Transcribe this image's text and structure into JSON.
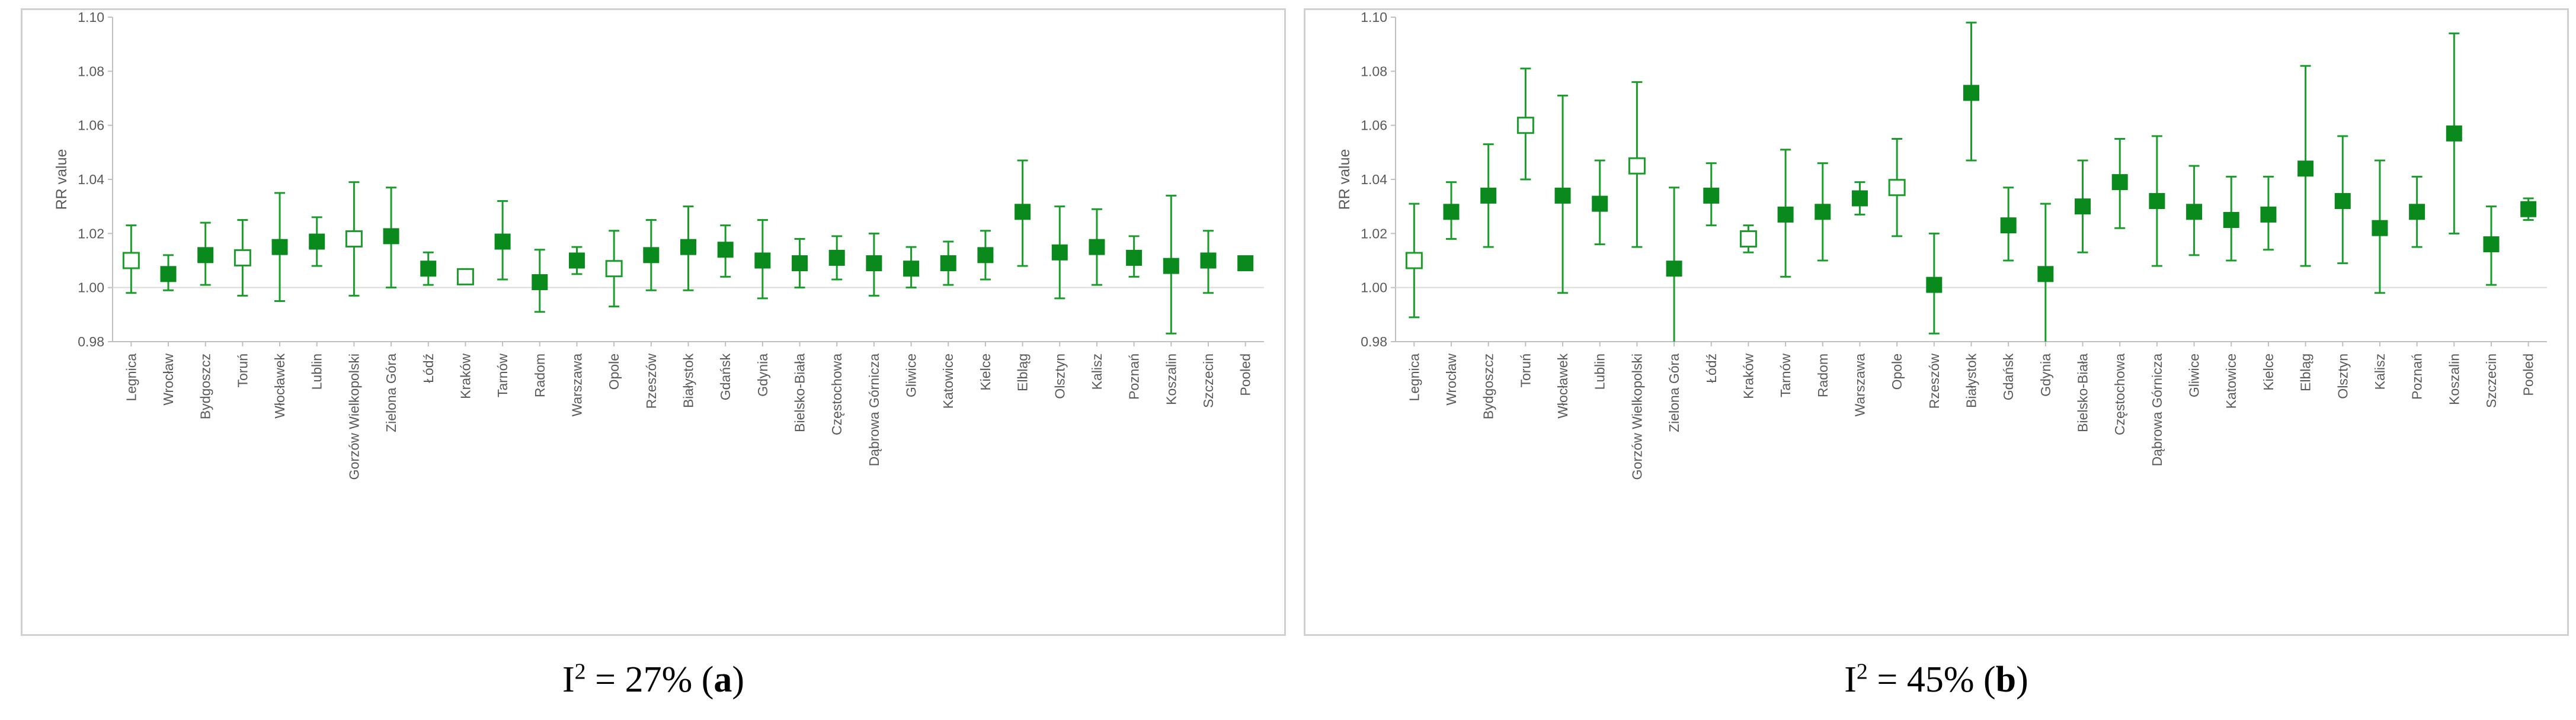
{
  "colors": {
    "series": "#1a9c2b",
    "filled": "#0a8a1c",
    "open_fill": "#ffffff",
    "axis": "#bfbfbf",
    "refline": "#d9d9d9",
    "text": "#595959"
  },
  "captions": [
    {
      "prefix": "I",
      "sup": "2",
      "eq": " = 27% (",
      "letter": "a",
      "suffix": ")"
    },
    {
      "prefix": "I",
      "sup": "2",
      "eq": " = 45% (",
      "letter": "b",
      "suffix": ")"
    }
  ],
  "chart_data": [
    {
      "type": "scatter",
      "subtype": "forest-plot",
      "title": "",
      "ylabel": "RR value",
      "xlabel": "",
      "ylim": [
        0.98,
        1.1
      ],
      "yticks": [
        "0.98",
        "1.00",
        "1.02",
        "1.04",
        "1.06",
        "1.08",
        "1.10"
      ],
      "reference_line": 1.0,
      "categories": [
        "Legnica",
        "Wrocław",
        "Bydgoszcz",
        "Toruń",
        "Włocławek",
        "Lublin",
        "Gorzów Wielkopolski",
        "Zielona Góra",
        "Łódź",
        "Kraków",
        "Tarnów",
        "Radom",
        "Warszawa",
        "Opole",
        "Rzeszów",
        "Białystok",
        "Gdańsk",
        "Gdynia",
        "Bielsko-Biała",
        "Częstochowa",
        "Dąbrowa Górnicza",
        "Gliwice",
        "Katowice",
        "Kielce",
        "Elbląg",
        "Olsztyn",
        "Kalisz",
        "Poznań",
        "Koszalin",
        "Szczecin",
        "Pooled"
      ],
      "values": [
        1.01,
        1.005,
        1.012,
        1.011,
        1.015,
        1.017,
        1.018,
        1.019,
        1.007,
        1.004,
        1.017,
        1.002,
        1.01,
        1.007,
        1.012,
        1.015,
        1.014,
        1.01,
        1.009,
        1.011,
        1.009,
        1.007,
        1.009,
        1.012,
        1.028,
        1.013,
        1.015,
        1.011,
        1.008,
        1.01,
        1.009
      ],
      "ci_low": [
        0.998,
        0.999,
        1.001,
        0.997,
        0.995,
        1.008,
        0.997,
        1.0,
        1.001,
        1.003,
        1.003,
        0.991,
        1.005,
        0.993,
        0.999,
        0.999,
        1.004,
        0.996,
        1.0,
        1.003,
        0.997,
        1.0,
        1.001,
        1.003,
        1.008,
        0.996,
        1.001,
        1.004,
        0.983,
        0.998,
        1.007
      ],
      "ci_high": [
        1.023,
        1.012,
        1.024,
        1.025,
        1.035,
        1.026,
        1.039,
        1.037,
        1.013,
        1.005,
        1.032,
        1.014,
        1.015,
        1.021,
        1.025,
        1.03,
        1.023,
        1.025,
        1.018,
        1.019,
        1.02,
        1.015,
        1.017,
        1.021,
        1.047,
        1.03,
        1.029,
        1.019,
        1.034,
        1.021,
        1.011
      ],
      "significant": [
        false,
        true,
        true,
        false,
        true,
        true,
        false,
        true,
        true,
        false,
        true,
        true,
        true,
        false,
        true,
        true,
        true,
        true,
        true,
        true,
        true,
        true,
        true,
        true,
        true,
        true,
        true,
        true,
        true,
        true,
        true
      ]
    },
    {
      "type": "scatter",
      "subtype": "forest-plot",
      "title": "",
      "ylabel": "RR value",
      "xlabel": "",
      "ylim": [
        0.98,
        1.1
      ],
      "yticks": [
        "0.98",
        "1.00",
        "1.02",
        "1.04",
        "1.06",
        "1.08",
        "1.10"
      ],
      "reference_line": 1.0,
      "categories": [
        "Legnica",
        "Wrocław",
        "Bydgoszcz",
        "Toruń",
        "Włocławek",
        "Lublin",
        "Gorzów Wielkopolski",
        "Zielona Góra",
        "Łódź",
        "Kraków",
        "Tarnów",
        "Radom",
        "Warszawa",
        "Opole",
        "Rzeszów",
        "Białystok",
        "Gdańsk",
        "Gdynia",
        "Bielsko-Biała",
        "Częstochowa",
        "Dąbrowa Górnicza",
        "Gliwice",
        "Katowice",
        "Kielce",
        "Elbląg",
        "Olsztyn",
        "Kalisz",
        "Poznań",
        "Koszalin",
        "Szczecin",
        "Pooled"
      ],
      "values": [
        1.01,
        1.028,
        1.034,
        1.06,
        1.034,
        1.031,
        1.045,
        1.007,
        1.034,
        1.018,
        1.027,
        1.028,
        1.033,
        1.037,
        1.001,
        1.072,
        1.023,
        1.005,
        1.03,
        1.039,
        1.032,
        1.028,
        1.025,
        1.027,
        1.044,
        1.032,
        1.022,
        1.028,
        1.057,
        1.016,
        1.029
      ],
      "ci_low": [
        0.989,
        1.018,
        1.015,
        1.04,
        0.998,
        1.016,
        1.015,
        0.978,
        1.023,
        1.013,
        1.004,
        1.01,
        1.027,
        1.019,
        0.983,
        1.047,
        1.01,
        0.978,
        1.013,
        1.022,
        1.008,
        1.012,
        1.01,
        1.014,
        1.008,
        1.009,
        0.998,
        1.015,
        1.02,
        1.001,
        1.025
      ],
      "ci_high": [
        1.031,
        1.039,
        1.053,
        1.081,
        1.071,
        1.047,
        1.076,
        1.037,
        1.046,
        1.023,
        1.051,
        1.046,
        1.039,
        1.055,
        1.02,
        1.098,
        1.037,
        1.031,
        1.047,
        1.055,
        1.056,
        1.045,
        1.041,
        1.041,
        1.082,
        1.056,
        1.047,
        1.041,
        1.094,
        1.03,
        1.033
      ],
      "significant": [
        false,
        true,
        true,
        false,
        true,
        true,
        false,
        true,
        true,
        false,
        true,
        true,
        true,
        false,
        true,
        true,
        true,
        true,
        true,
        true,
        true,
        true,
        true,
        true,
        true,
        true,
        true,
        true,
        true,
        true,
        true
      ]
    }
  ]
}
